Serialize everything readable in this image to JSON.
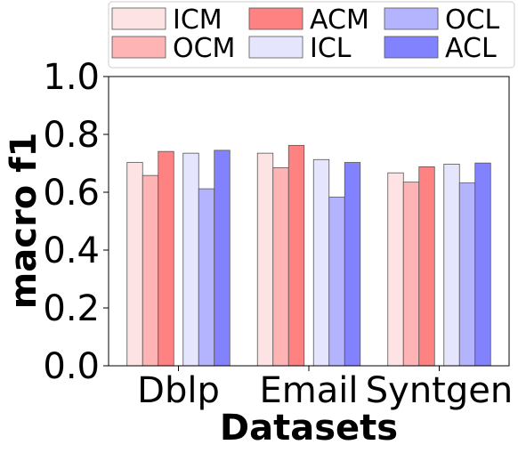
{
  "chart_data": {
    "type": "bar",
    "categories": [
      "Dblp",
      "Email",
      "Syntgen"
    ],
    "series": [
      {
        "name": "ICM",
        "color": "#fde3e3",
        "values": [
          0.703,
          0.735,
          0.667
        ]
      },
      {
        "name": "OCM",
        "color": "#feb4b4",
        "values": [
          0.658,
          0.685,
          0.635
        ]
      },
      {
        "name": "ACM",
        "color": "#fe8282",
        "values": [
          0.741,
          0.762,
          0.688
        ]
      },
      {
        "name": "ICL",
        "color": "#e5e5fe",
        "values": [
          0.735,
          0.713,
          0.697
        ]
      },
      {
        "name": "OCL",
        "color": "#b4b4fe",
        "values": [
          0.612,
          0.583,
          0.632
        ]
      },
      {
        "name": "ACL",
        "color": "#8282fe",
        "values": [
          0.745,
          0.703,
          0.701
        ]
      }
    ],
    "xlabel": "Datasets",
    "ylabel": "macro f1",
    "ylim": [
      0.0,
      1.0
    ],
    "yticks": [
      "0.0",
      "0.2",
      "0.4",
      "0.6",
      "0.8",
      "1.0"
    ],
    "grid": false,
    "legend_position": "top"
  }
}
